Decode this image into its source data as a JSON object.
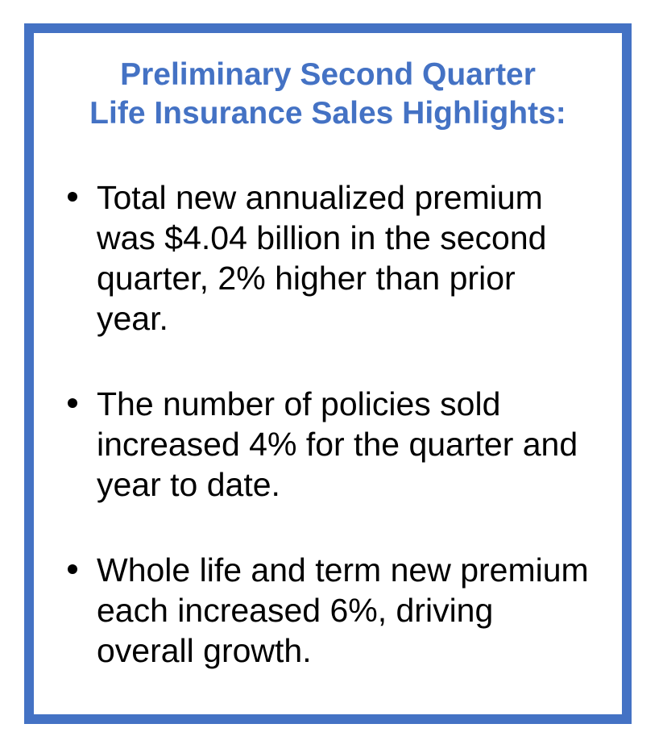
{
  "document": {
    "title_line1": "Preliminary Second Quarter",
    "title_line2": "Life Insurance Sales Highlights:",
    "bullets": [
      {
        "text": "Total new annualized premium was $4.04 billion in the second quarter, 2% higher than prior year."
      },
      {
        "text": "The number of policies sold increased 4% for the quarter and year to date."
      },
      {
        "text": "Whole life and term new premium each increased 6%, driving overall growth."
      }
    ],
    "colors": {
      "accent": "#4472C4",
      "text": "#000000",
      "background": "#FFFFFF"
    }
  }
}
